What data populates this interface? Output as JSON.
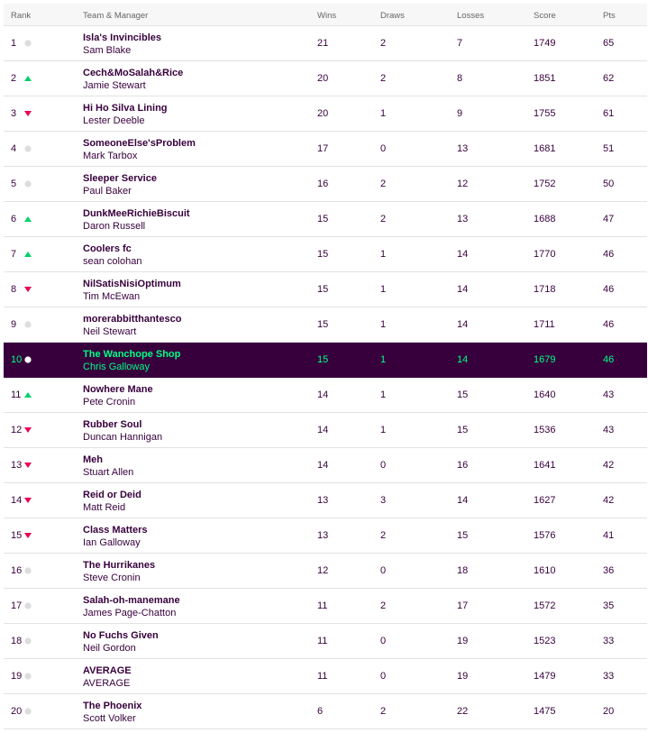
{
  "header": {
    "rank": "Rank",
    "team": "Team & Manager",
    "wins": "Wins",
    "draws": "Draws",
    "losses": "Losses",
    "score": "Score",
    "pts": "Pts"
  },
  "colors": {
    "up": "#00d26a",
    "down": "#e90052",
    "same": "#dddddd",
    "highlight_bg": "#37003c",
    "highlight_text": "#00ff85"
  },
  "rows": [
    {
      "rank": "1",
      "move": "same",
      "team": "Isla's Invincibles",
      "manager": "Sam Blake",
      "wins": "21",
      "draws": "2",
      "losses": "7",
      "score": "1749",
      "pts": "65"
    },
    {
      "rank": "2",
      "move": "up",
      "team": "Cech&MoSalah&Rice",
      "manager": "Jamie Stewart",
      "wins": "20",
      "draws": "2",
      "losses": "8",
      "score": "1851",
      "pts": "62"
    },
    {
      "rank": "3",
      "move": "down",
      "team": "Hi Ho Silva Lining",
      "manager": "Lester Deeble",
      "wins": "20",
      "draws": "1",
      "losses": "9",
      "score": "1755",
      "pts": "61"
    },
    {
      "rank": "4",
      "move": "same",
      "team": "SomeoneElse'sProblem",
      "manager": "Mark Tarbox",
      "wins": "17",
      "draws": "0",
      "losses": "13",
      "score": "1681",
      "pts": "51"
    },
    {
      "rank": "5",
      "move": "same",
      "team": "Sleeper Service",
      "manager": "Paul Baker",
      "wins": "16",
      "draws": "2",
      "losses": "12",
      "score": "1752",
      "pts": "50"
    },
    {
      "rank": "6",
      "move": "up",
      "team": "DunkMeeRichieBiscuit",
      "manager": "Daron Russell",
      "wins": "15",
      "draws": "2",
      "losses": "13",
      "score": "1688",
      "pts": "47"
    },
    {
      "rank": "7",
      "move": "up",
      "team": "Coolers fc",
      "manager": "sean colohan",
      "wins": "15",
      "draws": "1",
      "losses": "14",
      "score": "1770",
      "pts": "46"
    },
    {
      "rank": "8",
      "move": "down",
      "team": "NilSatisNisiOptimum",
      "manager": "Tim McEwan",
      "wins": "15",
      "draws": "1",
      "losses": "14",
      "score": "1718",
      "pts": "46"
    },
    {
      "rank": "9",
      "move": "same",
      "team": "morerabbitthantesco",
      "manager": "Neil Stewart",
      "wins": "15",
      "draws": "1",
      "losses": "14",
      "score": "1711",
      "pts": "46"
    },
    {
      "rank": "10",
      "move": "same",
      "team": "The Wanchope Shop",
      "manager": "Chris Galloway",
      "wins": "15",
      "draws": "1",
      "losses": "14",
      "score": "1679",
      "pts": "46",
      "highlight": true
    },
    {
      "rank": "11",
      "move": "up",
      "team": "Nowhere Mane",
      "manager": "Pete Cronin",
      "wins": "14",
      "draws": "1",
      "losses": "15",
      "score": "1640",
      "pts": "43"
    },
    {
      "rank": "12",
      "move": "down",
      "team": "Rubber Soul",
      "manager": "Duncan Hannigan",
      "wins": "14",
      "draws": "1",
      "losses": "15",
      "score": "1536",
      "pts": "43"
    },
    {
      "rank": "13",
      "move": "down",
      "team": "Meh",
      "manager": "Stuart Allen",
      "wins": "14",
      "draws": "0",
      "losses": "16",
      "score": "1641",
      "pts": "42"
    },
    {
      "rank": "14",
      "move": "down",
      "team": "Reid or Deid",
      "manager": "Matt Reid",
      "wins": "13",
      "draws": "3",
      "losses": "14",
      "score": "1627",
      "pts": "42"
    },
    {
      "rank": "15",
      "move": "down",
      "team": "Class Matters",
      "manager": "Ian Galloway",
      "wins": "13",
      "draws": "2",
      "losses": "15",
      "score": "1576",
      "pts": "41"
    },
    {
      "rank": "16",
      "move": "same",
      "team": "The Hurrikanes",
      "manager": "Steve Cronin",
      "wins": "12",
      "draws": "0",
      "losses": "18",
      "score": "1610",
      "pts": "36"
    },
    {
      "rank": "17",
      "move": "same",
      "team": "Salah-oh-manemane",
      "manager": "James Page-Chatton",
      "wins": "11",
      "draws": "2",
      "losses": "17",
      "score": "1572",
      "pts": "35"
    },
    {
      "rank": "18",
      "move": "same",
      "team": "No Fuchs Given",
      "manager": "Neil Gordon",
      "wins": "11",
      "draws": "0",
      "losses": "19",
      "score": "1523",
      "pts": "33"
    },
    {
      "rank": "19",
      "move": "same",
      "team": "AVERAGE",
      "manager": "AVERAGE",
      "wins": "11",
      "draws": "0",
      "losses": "19",
      "score": "1479",
      "pts": "33"
    },
    {
      "rank": "20",
      "move": "same",
      "team": "The Phoenix",
      "manager": "Scott Volker",
      "wins": "6",
      "draws": "2",
      "losses": "22",
      "score": "1475",
      "pts": "20"
    }
  ]
}
